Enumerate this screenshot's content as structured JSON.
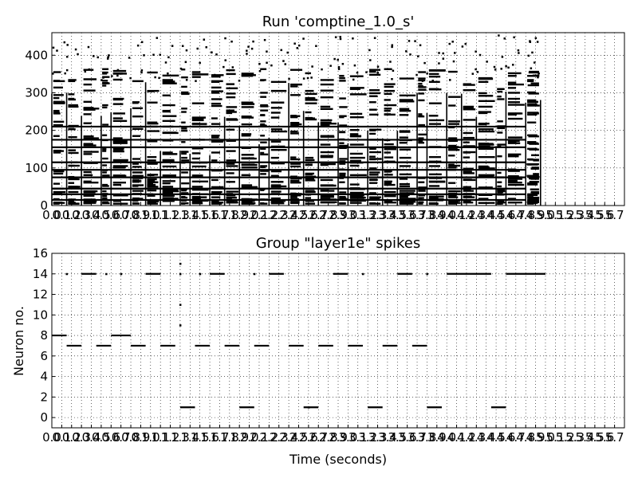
{
  "chart_data": [
    {
      "type": "scatter",
      "title": "Run 'comptine_1.0_s'",
      "xlabel": "",
      "ylabel": "",
      "xlim": [
        0,
        5.8
      ],
      "ylim": [
        0,
        460
      ],
      "grid": true,
      "yticks": [
        "0",
        "100",
        "200",
        "300",
        "400"
      ],
      "xtick_labels": [
        "0.0",
        "0.1",
        "0.2",
        "0.3",
        "0.4",
        "0.5",
        "0.6",
        "0.7",
        "0.8",
        "0.9",
        "1.0",
        "1.1",
        "1.2",
        "1.3",
        "1.4",
        "1.5",
        "1.6",
        "1.7",
        "1.8",
        "1.9",
        "2.0",
        "2.1",
        "2.2",
        "2.3",
        "2.4",
        "2.5",
        "2.6",
        "2.7",
        "2.8",
        "2.9",
        "3.0",
        "3.1",
        "3.2",
        "3.3",
        "3.4",
        "3.5",
        "3.6",
        "3.7",
        "3.8",
        "3.9",
        "4.0",
        "4.1",
        "4.2",
        "4.3",
        "4.4",
        "4.5",
        "4.6",
        "4.7",
        "4.8",
        "4.9",
        "5.0",
        "5.1",
        "5.2",
        "5.3",
        "5.4",
        "5.5",
        "5.6",
        "5.7"
      ],
      "note_onsets_s": [
        0.0,
        0.15,
        0.3,
        0.5,
        0.6,
        0.8,
        0.95,
        1.1,
        1.3,
        1.4,
        1.6,
        1.75,
        1.9,
        2.1,
        2.2,
        2.4,
        2.55,
        2.7,
        2.9,
        3.0,
        3.2,
        3.35,
        3.5,
        3.7,
        3.8,
        4.0,
        4.15,
        4.3,
        4.5,
        4.6,
        4.8,
        4.95
      ],
      "sustained_bands": [
        {
          "neuron": 15,
          "x": [
            0,
            4.8
          ]
        },
        {
          "neuron": 30,
          "x": [
            0,
            4.8
          ]
        },
        {
          "neuron": 45,
          "x": [
            0,
            4.8
          ]
        },
        {
          "neuron": 75,
          "x": [
            0,
            4.8
          ]
        },
        {
          "neuron": 95,
          "x": [
            0,
            4.8
          ]
        },
        {
          "neuron": 115,
          "x": [
            0,
            4.8
          ]
        },
        {
          "neuron": 155,
          "x": [
            0,
            4.8
          ]
        },
        {
          "neuron": 175,
          "x": [
            0,
            4.8
          ]
        },
        {
          "neuron": 210,
          "x": [
            0,
            4.8
          ]
        }
      ]
    },
    {
      "type": "scatter",
      "title": "Group \"layer1e\" spikes",
      "xlabel": "Time (seconds)",
      "ylabel": "Neuron no.",
      "xlim": [
        0,
        5.8
      ],
      "ylim": [
        -1,
        16
      ],
      "grid": true,
      "yticks": [
        "0",
        "2",
        "4",
        "6",
        "8",
        "10",
        "12",
        "14",
        "16"
      ],
      "xtick_labels": [
        "0.0",
        "0.1",
        "0.2",
        "0.3",
        "0.4",
        "0.5",
        "0.6",
        "0.7",
        "0.8",
        "0.9",
        "1.0",
        "1.1",
        "1.2",
        "1.3",
        "1.4",
        "1.5",
        "1.6",
        "1.7",
        "1.8",
        "1.9",
        "2.0",
        "2.1",
        "2.2",
        "2.3",
        "2.4",
        "2.5",
        "2.6",
        "2.7",
        "2.8",
        "2.9",
        "3.0",
        "3.1",
        "3.2",
        "3.3",
        "3.4",
        "3.5",
        "3.6",
        "3.7",
        "3.8",
        "3.9",
        "4.0",
        "4.1",
        "4.2",
        "4.3",
        "4.4",
        "4.5",
        "4.6",
        "4.7",
        "4.8",
        "4.9",
        "5.0",
        "5.1",
        "5.2",
        "5.3",
        "5.4",
        "5.5",
        "5.6",
        "5.7"
      ],
      "spike_runs": [
        {
          "neuron": 8,
          "x": [
            0.0,
            0.15
          ]
        },
        {
          "neuron": 7,
          "x": [
            0.15,
            0.3
          ]
        },
        {
          "neuron": 14,
          "x": [
            0.3,
            0.45
          ]
        },
        {
          "neuron": 7,
          "x": [
            0.45,
            0.6
          ]
        },
        {
          "neuron": 8,
          "x": [
            0.6,
            0.8
          ]
        },
        {
          "neuron": 7,
          "x": [
            0.8,
            0.95
          ]
        },
        {
          "neuron": 14,
          "x": [
            0.95,
            1.1
          ]
        },
        {
          "neuron": 7,
          "x": [
            1.1,
            1.25
          ]
        },
        {
          "neuron": 1,
          "x": [
            1.3,
            1.45
          ]
        },
        {
          "neuron": 7,
          "x": [
            1.45,
            1.6
          ]
        },
        {
          "neuron": 14,
          "x": [
            1.6,
            1.75
          ]
        },
        {
          "neuron": 7,
          "x": [
            1.75,
            1.9
          ]
        },
        {
          "neuron": 1,
          "x": [
            1.9,
            2.05
          ]
        },
        {
          "neuron": 7,
          "x": [
            2.05,
            2.2
          ]
        },
        {
          "neuron": 14,
          "x": [
            2.2,
            2.35
          ]
        },
        {
          "neuron": 7,
          "x": [
            2.4,
            2.55
          ]
        },
        {
          "neuron": 1,
          "x": [
            2.55,
            2.7
          ]
        },
        {
          "neuron": 7,
          "x": [
            2.7,
            2.85
          ]
        },
        {
          "neuron": 14,
          "x": [
            2.85,
            3.0
          ]
        },
        {
          "neuron": 7,
          "x": [
            3.0,
            3.15
          ]
        },
        {
          "neuron": 1,
          "x": [
            3.2,
            3.35
          ]
        },
        {
          "neuron": 7,
          "x": [
            3.35,
            3.5
          ]
        },
        {
          "neuron": 14,
          "x": [
            3.5,
            3.65
          ]
        },
        {
          "neuron": 7,
          "x": [
            3.65,
            3.8
          ]
        },
        {
          "neuron": 1,
          "x": [
            3.8,
            3.95
          ]
        },
        {
          "neuron": 14,
          "x": [
            4.0,
            4.45
          ]
        },
        {
          "neuron": 1,
          "x": [
            4.45,
            4.6
          ]
        },
        {
          "neuron": 14,
          "x": [
            4.6,
            5.0
          ]
        }
      ],
      "isolated_spikes": [
        {
          "neuron": 14,
          "x": 0.15
        },
        {
          "neuron": 14,
          "x": 0.55
        },
        {
          "neuron": 14,
          "x": 0.7
        },
        {
          "neuron": 15,
          "x": 1.3
        },
        {
          "neuron": 14,
          "x": 1.3
        },
        {
          "neuron": 11,
          "x": 1.3
        },
        {
          "neuron": 9,
          "x": 1.3
        },
        {
          "neuron": 14,
          "x": 1.5
        },
        {
          "neuron": 14,
          "x": 2.05
        },
        {
          "neuron": 1,
          "x": 2.6
        },
        {
          "neuron": 14,
          "x": 3.15
        },
        {
          "neuron": 14,
          "x": 3.8
        }
      ]
    }
  ]
}
